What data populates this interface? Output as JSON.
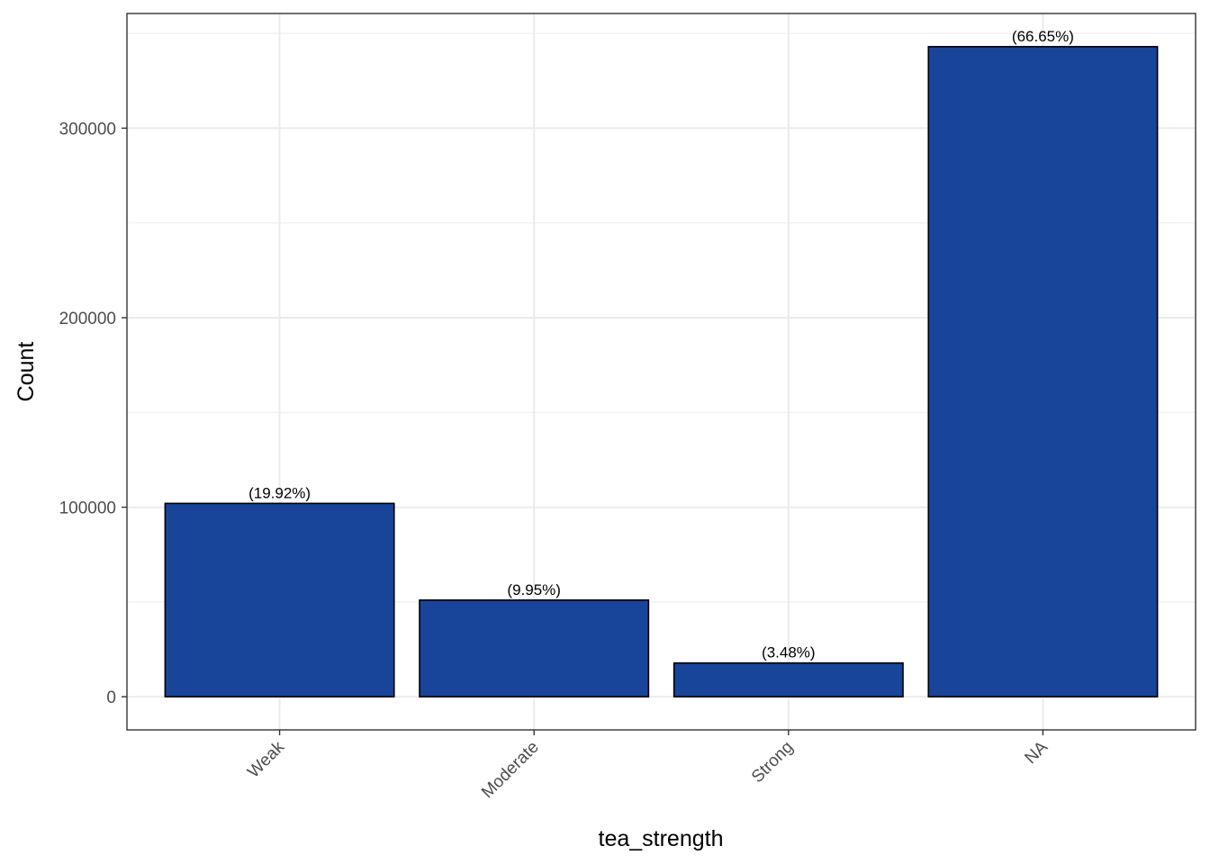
{
  "chart_data": {
    "type": "bar",
    "title": "",
    "xlabel": "tea_strength",
    "ylabel": "Count",
    "categories": [
      "Weak",
      "Moderate",
      "Strong",
      "NA"
    ],
    "values": [
      102000,
      51000,
      17800,
      343000
    ],
    "data_labels": [
      "(19.92%)",
      "(9.95%)",
      "(3.48%)",
      "(66.65%)"
    ],
    "ylim": [
      -17500,
      360500
    ],
    "y_ticks": [
      0,
      100000,
      200000,
      300000
    ],
    "y_tick_labels": [
      "0",
      "100000",
      "200000",
      "300000"
    ],
    "y_minor_ticks": [
      50000,
      150000,
      250000,
      350000
    ],
    "grid": true,
    "legend": "none",
    "colors": {
      "bar_fill": "#184599",
      "bar_stroke": "#000000",
      "grid": "#ebebeb",
      "panel_border": "#333333",
      "tick_text": "#4d4d4d",
      "background": "#ffffff"
    }
  }
}
